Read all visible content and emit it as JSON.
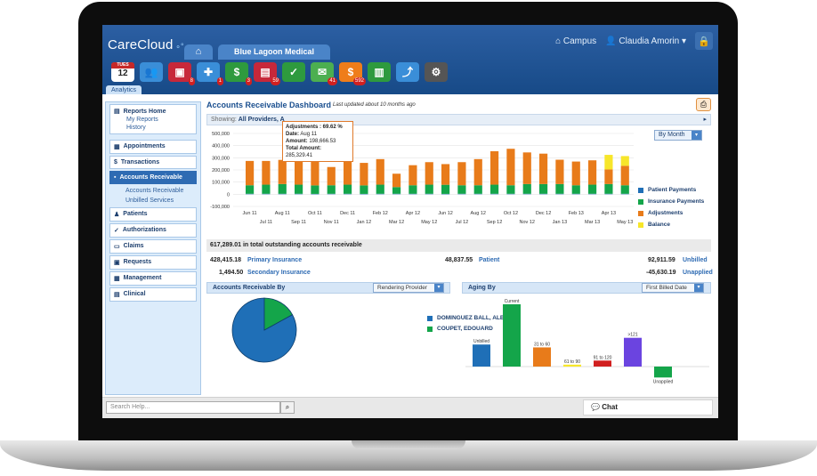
{
  "app": {
    "logo": "CareCloud",
    "campus_label": "Campus",
    "user_name": "Claudia Amorin",
    "practice_tab": "Blue Lagoon Medical",
    "analytics_tab": "Analytics"
  },
  "toolbar": {
    "calendar_day": "TUES",
    "calendar_date": "12",
    "badges": [
      "8",
      "1",
      "3",
      "59",
      "41",
      "592"
    ]
  },
  "sidebar": {
    "reports_home": "Reports Home",
    "my_reports": "My Reports",
    "history": "History",
    "appointments": "Appointments",
    "transactions": "Transactions",
    "accounts_receivable": "Accounts Receivable",
    "accounts_receivable_sub": "Accounts Receivable",
    "unbilled_services": "Unbilled Services",
    "patients": "Patients",
    "authorizations": "Authorizations",
    "claims": "Claims",
    "requests": "Requests",
    "management": "Management",
    "clinical": "Clinical"
  },
  "dashboard": {
    "title": "Accounts Receivable Dashboard",
    "updated": "Last updated about 10 months ago",
    "showing_label": "Showing:",
    "showing_value": "All Providers, A",
    "period_select": "By Month",
    "tooltip": {
      "line1": "Adjustments : 69.62 %",
      "date_label": "Date:",
      "date_value": "Aug 11",
      "amount_label": "Amount:",
      "amount_value": "198,666.53",
      "total_label": "Total Amount:",
      "total_value": "285,329.41"
    }
  },
  "chart_data": {
    "type": "bar",
    "stacked": true,
    "x_labels_top": [
      "Jun 11",
      "Aug 11",
      "Oct 11",
      "Dec 11",
      "Feb 12",
      "Apr 12",
      "Jun 12",
      "Aug 12",
      "Oct 12",
      "Dec 12",
      "Feb 13",
      "Apr 13"
    ],
    "x_labels_bottom": [
      "Jul 11",
      "Sep 11",
      "Nov 11",
      "Jan 12",
      "Mar 12",
      "May 12",
      "Jul 12",
      "Sep 12",
      "Nov 12",
      "Jan 13",
      "Mar 13",
      "May 13"
    ],
    "y_ticks": [
      "500,000",
      "400,000",
      "300,000",
      "200,000",
      "100,000",
      "0",
      "-100,000"
    ],
    "ylim": [
      -100000,
      500000
    ],
    "series": [
      {
        "name": "Patient Payments",
        "color": "#1f6fb7",
        "values": [
          4000,
          4000,
          4000,
          4000,
          3000,
          4000,
          4000,
          3000,
          4000,
          4000,
          4000,
          4000,
          3000,
          4000,
          4000,
          4000,
          4000,
          4000,
          4000,
          4000,
          4000,
          4000,
          4000,
          4000
        ]
      },
      {
        "name": "Insurance Payments",
        "color": "#14a54a",
        "values": [
          70000,
          75000,
          80000,
          75000,
          70000,
          70000,
          75000,
          70000,
          75000,
          55000,
          70000,
          75000,
          75000,
          70000,
          70000,
          75000,
          70000,
          80000,
          80000,
          80000,
          70000,
          75000,
          80000,
          70000
        ]
      },
      {
        "name": "Adjustments",
        "color": "#e87b1a",
        "values": [
          200000,
          195000,
          198667,
          210000,
          200000,
          150000,
          200000,
          185000,
          210000,
          110000,
          165000,
          185000,
          170000,
          190000,
          215000,
          275000,
          300000,
          260000,
          250000,
          200000,
          195000,
          200000,
          120000,
          160000
        ]
      },
      {
        "name": "Balance",
        "color": "#f7e62a",
        "values": [
          0,
          0,
          0,
          0,
          0,
          0,
          0,
          0,
          0,
          0,
          0,
          0,
          0,
          0,
          0,
          0,
          0,
          0,
          0,
          0,
          0,
          0,
          120000,
          80000
        ]
      }
    ]
  },
  "summary": {
    "total_text": "617,289.01 in total outstanding accounts receivable",
    "primary_amount": "428,415.18",
    "primary_label": "Primary Insurance",
    "secondary_amount": "1,494.50",
    "secondary_label": "Secondary Insurance",
    "patient_amount": "48,837.55",
    "patient_label": "Patient",
    "unbilled_amount": "92,911.59",
    "unbilled_label": "Unbilled",
    "unapplied_amount": "-45,630.19",
    "unapplied_label": "Unapplied"
  },
  "ar_by": {
    "title": "Accounts Receivable By",
    "select": "Rendering Provider",
    "pie": [
      {
        "name": "DOMINGUEZ BALL, ALBERTO",
        "color": "#1f6fb7",
        "value": 83
      },
      {
        "name": "COUPET, EDOUARD",
        "color": "#14a54a",
        "value": 17
      }
    ]
  },
  "aging": {
    "title": "Aging By",
    "select": "First Billed Date",
    "bars": [
      {
        "label": "Unbilled",
        "color": "#1f6fb7",
        "value": 92000
      },
      {
        "label": "Current",
        "color": "#14a54a",
        "value": 260000
      },
      {
        "label": "31 to 60",
        "color": "#e87b1a",
        "value": 80000
      },
      {
        "label": "61 to 90",
        "color": "#f7e62a",
        "value": 8000
      },
      {
        "label": "91 to 120",
        "color": "#d12020",
        "value": 25000
      },
      {
        "label": ">121",
        "color": "#6b44e0",
        "value": 120000
      },
      {
        "label": "Unapplied",
        "color": "#14a54a",
        "value": -45630
      }
    ]
  },
  "bottom": {
    "search_placeholder": "Search Help...",
    "chat_label": "Chat"
  }
}
